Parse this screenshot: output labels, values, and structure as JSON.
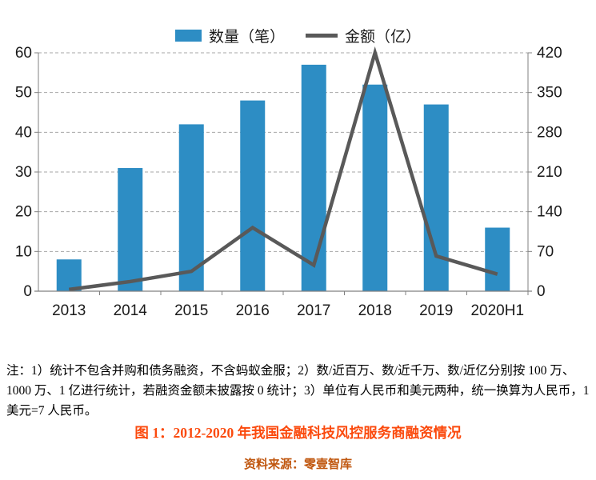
{
  "chart_data": {
    "type": "bar+line combo",
    "categories": [
      "2013",
      "2014",
      "2015",
      "2016",
      "2017",
      "2018",
      "2019",
      "2020H1"
    ],
    "series": [
      {
        "name": "数量（笔）",
        "type": "bar",
        "axis": "left",
        "color": "#2D8DC4",
        "values": [
          8,
          31,
          42,
          48,
          57,
          52,
          47,
          16
        ]
      },
      {
        "name": "金额（亿）",
        "type": "line",
        "axis": "right",
        "color": "#595959",
        "values": [
          3,
          17,
          35,
          112,
          46,
          420,
          62,
          30
        ]
      }
    ],
    "left_axis": {
      "min": 0,
      "max": 60,
      "ticks": [
        0,
        10,
        20,
        30,
        40,
        50,
        60
      ]
    },
    "right_axis": {
      "min": 0,
      "max": 420,
      "ticks": [
        0,
        70,
        140,
        210,
        280,
        350,
        420
      ]
    },
    "legend_position": "top-center",
    "grid": "horizontal-dashed",
    "colors": {
      "grid": "#A6A6A6",
      "axis": "#808080",
      "tick_text": "#1a1a1a"
    }
  },
  "notes": "注：1）统计不包含并购和债务融资，不含蚂蚁金服；2）数/近百万、数/近千万、数/近亿分别按 100 万、1000 万、1 亿进行统计，若融资金额未披露按 0 统计；3）单位有人民币和美元两种，统一换算为人民币，1 美元=7 人民币。",
  "caption": "图 1：2012-2020 年我国金融科技风控服务商融资情况",
  "source": "资料来源：零壹智库",
  "colors": {
    "caption": "#FB4A0D",
    "source": "#C0570F"
  }
}
